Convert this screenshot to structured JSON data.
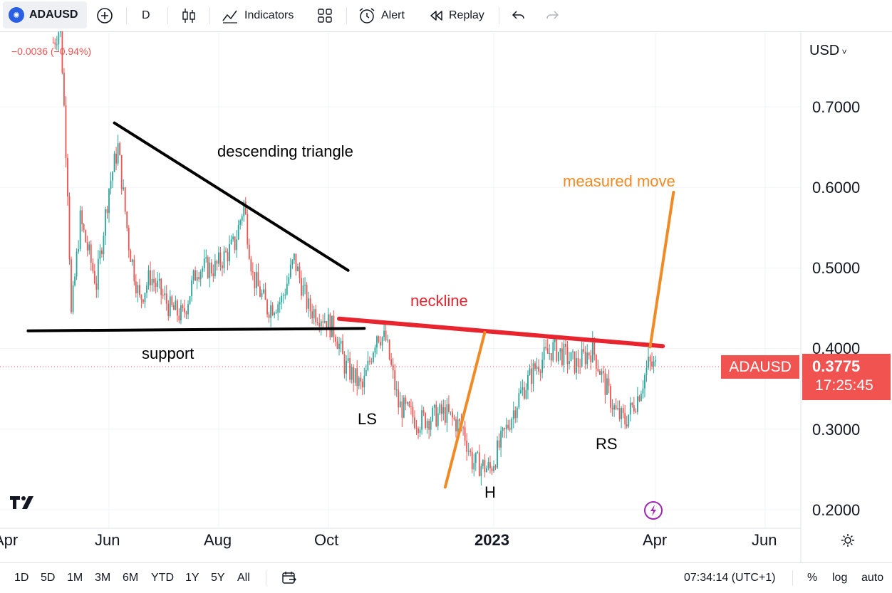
{
  "toolbar": {
    "symbol": "ADAUSD",
    "interval": "D",
    "indicators_label": "Indicators",
    "alert_label": "Alert",
    "replay_label": "Replay"
  },
  "legend": {
    "change": "−0.0036 (−0.94%)"
  },
  "price_axis": {
    "currency": "USD",
    "ticks": [
      "0.7000",
      "0.6000",
      "0.5000",
      "0.4000",
      "0.3000",
      "0.2000"
    ]
  },
  "time_axis": {
    "ticks": [
      "Apr",
      "Jun",
      "Aug",
      "Oct",
      "2023",
      "Apr",
      "Jun"
    ]
  },
  "last_price": {
    "symbol": "ADAUSD",
    "price": "0.3775",
    "countdown": "17:25:45"
  },
  "annotations": {
    "descending_triangle": "descending triangle",
    "support": "support",
    "neckline": "neckline",
    "measured_move": "measured move",
    "ls": "LS",
    "h": "H",
    "rs": "RS"
  },
  "bottom_bar": {
    "ranges": [
      "1D",
      "5D",
      "1M",
      "3M",
      "6M",
      "YTD",
      "1Y",
      "5Y",
      "All"
    ],
    "clock": "07:34:14 (UTC+1)",
    "percent": "%",
    "log": "log",
    "auto": "auto"
  },
  "colors": {
    "up": "#26a69a",
    "down": "#ef5350",
    "neckline": "#e8242e",
    "measured": "#f08a24",
    "tag": "#f05350"
  },
  "chart_data": {
    "type": "candlestick",
    "ylim": [
      0.19,
      0.78
    ],
    "price_path": [
      [
        "2022-05-01",
        0.78
      ],
      [
        "2022-05-05",
        0.8
      ],
      [
        "2022-05-09",
        0.6
      ],
      [
        "2022-05-11",
        0.44
      ],
      [
        "2022-05-16",
        0.56
      ],
      [
        "2022-05-25",
        0.48
      ],
      [
        "2022-06-01",
        0.6
      ],
      [
        "2022-06-06",
        0.65
      ],
      [
        "2022-06-12",
        0.53
      ],
      [
        "2022-06-18",
        0.46
      ],
      [
        "2022-06-24",
        0.49
      ],
      [
        "2022-07-05",
        0.45
      ],
      [
        "2022-07-12",
        0.44
      ],
      [
        "2022-07-20",
        0.5
      ],
      [
        "2022-07-30",
        0.5
      ],
      [
        "2022-08-10",
        0.53
      ],
      [
        "2022-08-15",
        0.58
      ],
      [
        "2022-08-20",
        0.49
      ],
      [
        "2022-08-28",
        0.45
      ],
      [
        "2022-09-05",
        0.46
      ],
      [
        "2022-09-12",
        0.51
      ],
      [
        "2022-09-20",
        0.45
      ],
      [
        "2022-09-28",
        0.44
      ],
      [
        "2022-10-05",
        0.42
      ],
      [
        "2022-10-10",
        0.38
      ],
      [
        "2022-10-20",
        0.35
      ],
      [
        "2022-10-28",
        0.42
      ],
      [
        "2022-11-02",
        0.41
      ],
      [
        "2022-11-09",
        0.33
      ],
      [
        "2022-11-20",
        0.31
      ],
      [
        "2022-12-05",
        0.32
      ],
      [
        "2022-12-15",
        0.3
      ],
      [
        "2022-12-20",
        0.26
      ],
      [
        "2022-12-30",
        0.25
      ],
      [
        "2023-01-08",
        0.3
      ],
      [
        "2023-01-15",
        0.34
      ],
      [
        "2023-01-25",
        0.38
      ],
      [
        "2023-02-03",
        0.4
      ],
      [
        "2023-02-10",
        0.39
      ],
      [
        "2023-02-16",
        0.38
      ],
      [
        "2023-02-25",
        0.4
      ],
      [
        "2023-03-03",
        0.36
      ],
      [
        "2023-03-10",
        0.32
      ],
      [
        "2023-03-15",
        0.31
      ],
      [
        "2023-03-22",
        0.34
      ],
      [
        "2023-03-28",
        0.38
      ],
      [
        "2023-04-01",
        0.3775
      ]
    ],
    "drawings": [
      {
        "name": "descending triangle",
        "color": "#000000",
        "from": [
          "2022-06-04",
          0.68
        ],
        "to": [
          "2022-10-12",
          0.497
        ]
      },
      {
        "name": "support",
        "color": "#000000",
        "from": [
          "2022-04-17",
          0.422
        ],
        "to": [
          "2022-10-21",
          0.425
        ]
      },
      {
        "name": "neckline",
        "color": "#e8242e",
        "from": [
          "2022-10-07",
          0.437
        ],
        "to": [
          "2023-04-05",
          0.403
        ]
      },
      {
        "name": "measured move",
        "color": "#f08a24",
        "from": [
          "2022-12-05",
          0.228
        ],
        "to": [
          "2022-12-27",
          0.42
        ]
      },
      {
        "name": "measured move",
        "color": "#f08a24",
        "from": [
          "2023-03-29",
          0.402
        ],
        "to": [
          "2023-04-11",
          0.594
        ]
      }
    ]
  }
}
